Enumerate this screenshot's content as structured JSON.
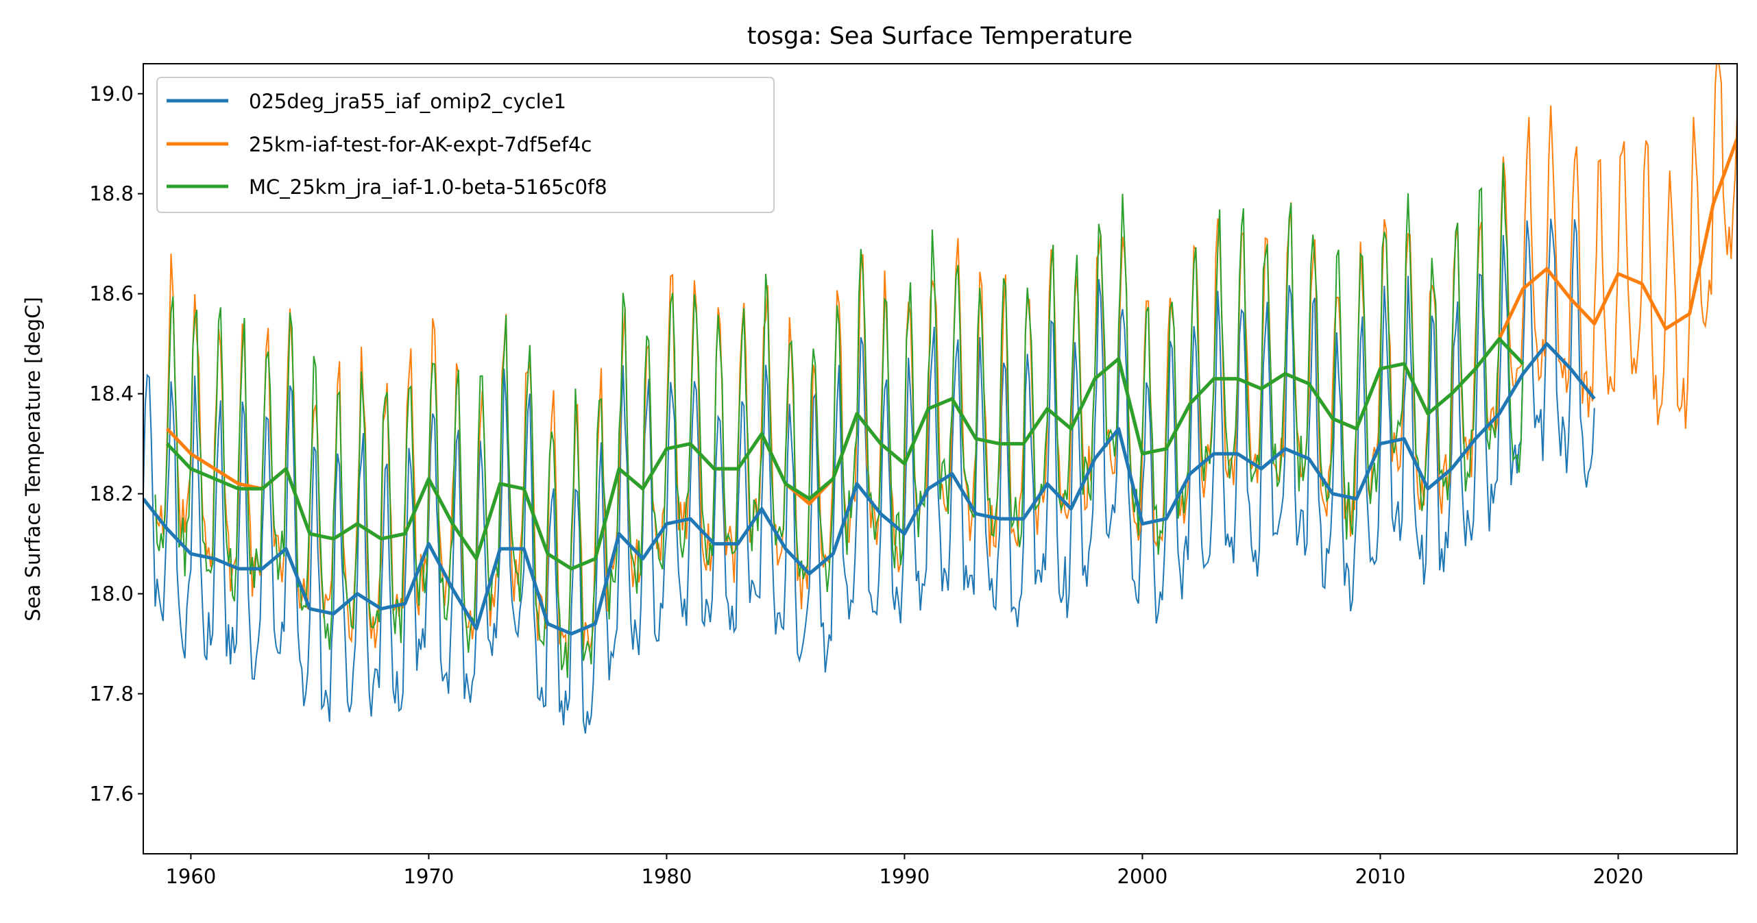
{
  "chart_data": {
    "type": "line",
    "title": "tosga: Sea Surface Temperature",
    "xlabel": "",
    "ylabel": "Sea Surface Temperature [degC]",
    "xlim": [
      1958,
      2025
    ],
    "ylim": [
      17.48,
      19.06
    ],
    "xticks": [
      "1960",
      "1970",
      "1980",
      "1990",
      "2000",
      "2010",
      "2020"
    ],
    "yticks": [
      "17.6",
      "17.8",
      "18.0",
      "18.2",
      "18.4",
      "18.6",
      "18.8",
      "19.0"
    ],
    "grid": false,
    "legend_position": "top-left",
    "note_thin_lines": "monthly values with seasonal cycle; thick lines annual means",
    "series": [
      {
        "name": "025deg_jra55_iaf_omip2_cycle1",
        "color": "#1f77b4",
        "seasonal_amplitude": 0.3,
        "annual_x": [
          1958,
          1959,
          1960,
          1961,
          1962,
          1963,
          1964,
          1965,
          1966,
          1967,
          1968,
          1969,
          1970,
          1971,
          1972,
          1973,
          1974,
          1975,
          1976,
          1977,
          1978,
          1979,
          1980,
          1981,
          1982,
          1983,
          1984,
          1985,
          1986,
          1987,
          1988,
          1989,
          1990,
          1991,
          1992,
          1993,
          1994,
          1995,
          1996,
          1997,
          1998,
          1999,
          2000,
          2001,
          2002,
          2003,
          2004,
          2005,
          2006,
          2007,
          2008,
          2009,
          2010,
          2011,
          2012,
          2013,
          2014,
          2015,
          2016,
          2017,
          2018,
          2019
        ],
        "annual_y": [
          18.19,
          18.13,
          18.08,
          18.07,
          18.05,
          18.05,
          18.09,
          17.97,
          17.96,
          18.0,
          17.97,
          17.98,
          18.1,
          18.01,
          17.93,
          18.09,
          18.09,
          17.94,
          17.92,
          17.94,
          18.12,
          18.07,
          18.14,
          18.15,
          18.1,
          18.1,
          18.17,
          18.09,
          18.04,
          18.08,
          18.22,
          18.16,
          18.12,
          18.21,
          18.24,
          18.16,
          18.15,
          18.15,
          18.22,
          18.17,
          18.27,
          18.33,
          18.14,
          18.15,
          18.24,
          18.28,
          18.28,
          18.25,
          18.29,
          18.27,
          18.2,
          18.19,
          18.3,
          18.31,
          18.21,
          18.25,
          18.31,
          18.36,
          18.44,
          18.5,
          18.45,
          18.39
        ]
      },
      {
        "name": "25km-iaf-test-for-AK-expt-7df5ef4c",
        "color": "#ff7f0e",
        "seasonal_amplitude": 0.3,
        "annual_x": [
          1959,
          1960,
          1961,
          1962,
          1963,
          1964,
          1965,
          1966,
          1967,
          1968,
          1969,
          1970,
          1971,
          1972,
          1973,
          1974,
          1975,
          1976,
          1977,
          1978,
          1979,
          1980,
          1981,
          1982,
          1983,
          1984,
          1985,
          1986,
          1987,
          1988,
          1989,
          1990,
          1991,
          1992,
          1993,
          1994,
          1995,
          1996,
          1997,
          1998,
          1999,
          2000,
          2001,
          2002,
          2003,
          2004,
          2005,
          2006,
          2007,
          2008,
          2009,
          2010,
          2011,
          2012,
          2013,
          2014,
          2015,
          2016,
          2017,
          2018,
          2019,
          2020,
          2021,
          2022,
          2023,
          2024,
          2025
        ],
        "annual_y": [
          18.33,
          18.28,
          18.25,
          18.22,
          18.21,
          18.25,
          18.12,
          18.11,
          18.14,
          18.11,
          18.12,
          18.23,
          18.14,
          18.07,
          18.22,
          18.21,
          18.08,
          18.05,
          18.07,
          18.25,
          18.21,
          18.29,
          18.3,
          18.25,
          18.25,
          18.32,
          18.22,
          18.18,
          18.23,
          18.36,
          18.3,
          18.26,
          18.37,
          18.39,
          18.31,
          18.3,
          18.3,
          18.37,
          18.33,
          18.43,
          18.47,
          18.28,
          18.29,
          18.38,
          18.43,
          18.43,
          18.41,
          18.44,
          18.42,
          18.35,
          18.33,
          18.45,
          18.46,
          18.36,
          18.4,
          18.45,
          18.51,
          18.61,
          18.65,
          18.59,
          18.54,
          18.64,
          18.62,
          18.53,
          18.56,
          18.78,
          18.91
        ]
      },
      {
        "name": "MC_25km_jra_iaf-1.0-beta-5165c0f8",
        "color": "#2ca02c",
        "seasonal_amplitude": 0.3,
        "annual_x": [
          1959,
          1960,
          1961,
          1962,
          1963,
          1964,
          1965,
          1966,
          1967,
          1968,
          1969,
          1970,
          1971,
          1972,
          1973,
          1974,
          1975,
          1976,
          1977,
          1978,
          1979,
          1980,
          1981,
          1982,
          1983,
          1984,
          1985,
          1986,
          1987,
          1988,
          1989,
          1990,
          1991,
          1992,
          1993,
          1994,
          1995,
          1996,
          1997,
          1998,
          1999,
          2000,
          2001,
          2002,
          2003,
          2004,
          2005,
          2006,
          2007,
          2008,
          2009,
          2010,
          2011,
          2012,
          2013,
          2014,
          2015,
          2016
        ],
        "annual_y": [
          18.3,
          18.25,
          18.23,
          18.21,
          18.21,
          18.25,
          18.12,
          18.11,
          18.14,
          18.11,
          18.12,
          18.23,
          18.14,
          18.07,
          18.22,
          18.21,
          18.08,
          18.05,
          18.07,
          18.25,
          18.21,
          18.29,
          18.3,
          18.25,
          18.25,
          18.32,
          18.22,
          18.19,
          18.23,
          18.36,
          18.3,
          18.26,
          18.37,
          18.39,
          18.31,
          18.3,
          18.3,
          18.37,
          18.33,
          18.43,
          18.47,
          18.28,
          18.29,
          18.38,
          18.43,
          18.43,
          18.41,
          18.44,
          18.42,
          18.35,
          18.33,
          18.45,
          18.46,
          18.36,
          18.4,
          18.45,
          18.51,
          18.46
        ]
      }
    ]
  }
}
